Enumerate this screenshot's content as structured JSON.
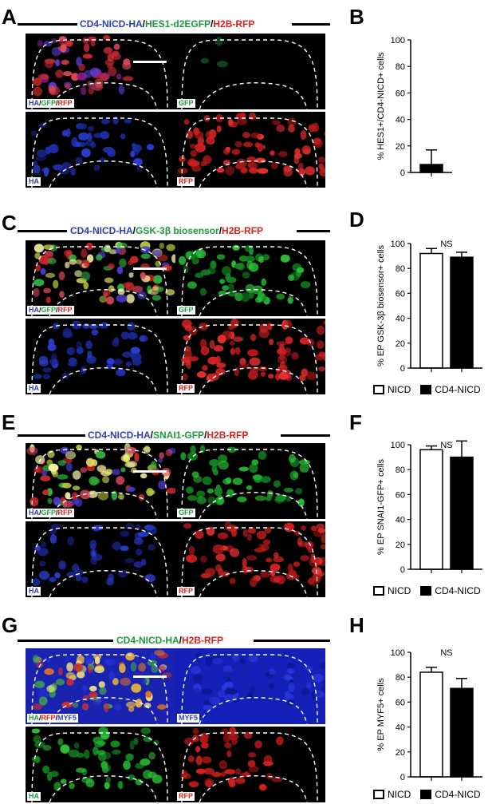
{
  "figure": {
    "panels": [
      {
        "letter": "A",
        "title": [
          {
            "text": "CD4-NICD-HA",
            "color": "blue"
          },
          {
            "text": "/",
            "color": "black"
          },
          {
            "text": "HES1-d2EGFP",
            "color": "green"
          },
          {
            "text": "/",
            "color": "black"
          },
          {
            "text": "H2B-RFP",
            "color": "red"
          }
        ],
        "images": [
          {
            "channels": [
              {
                "text": "HA",
                "color": "blue"
              },
              {
                "text": "/",
                "color": "black"
              },
              {
                "text": "GFP",
                "color": "green"
              },
              {
                "text": "/",
                "color": "black"
              },
              {
                "text": "RFP",
                "color": "red"
              }
            ],
            "fill": "merge_rb"
          },
          {
            "channels": [
              {
                "text": "GFP",
                "color": "green"
              }
            ],
            "fill": "gfp_weak"
          },
          {
            "channels": [
              {
                "text": "HA",
                "color": "blue"
              }
            ],
            "fill": "blue"
          },
          {
            "channels": [
              {
                "text": "RFP",
                "color": "red"
              }
            ],
            "fill": "red"
          }
        ]
      },
      {
        "letter": "C",
        "title": [
          {
            "text": "CD4-NICD-HA",
            "color": "blue"
          },
          {
            "text": "/",
            "color": "black"
          },
          {
            "text": "GSK-3β biosensor",
            "color": "green"
          },
          {
            "text": "/",
            "color": "black"
          },
          {
            "text": "H2B-RFP",
            "color": "red"
          }
        ],
        "images": [
          {
            "channels": [
              {
                "text": "HA",
                "color": "blue"
              },
              {
                "text": "/",
                "color": "black"
              },
              {
                "text": "GFP",
                "color": "green"
              },
              {
                "text": "/",
                "color": "black"
              },
              {
                "text": "RFP",
                "color": "red"
              }
            ],
            "fill": "merge_rgb"
          },
          {
            "channels": [
              {
                "text": "GFP",
                "color": "green"
              }
            ],
            "fill": "green"
          },
          {
            "channels": [
              {
                "text": "HA",
                "color": "blue"
              }
            ],
            "fill": "blue"
          },
          {
            "channels": [
              {
                "text": "RFP",
                "color": "red"
              }
            ],
            "fill": "red"
          }
        ]
      },
      {
        "letter": "E",
        "title": [
          {
            "text": "CD4-NICD-HA",
            "color": "blue"
          },
          {
            "text": "/",
            "color": "black"
          },
          {
            "text": "SNAI1-GFP",
            "color": "green"
          },
          {
            "text": "/",
            "color": "black"
          },
          {
            "text": "H2B-RFP",
            "color": "red"
          }
        ],
        "images": [
          {
            "channels": [
              {
                "text": "HA",
                "color": "blue"
              },
              {
                "text": "/",
                "color": "black"
              },
              {
                "text": "GFP",
                "color": "green"
              },
              {
                "text": "/",
                "color": "black"
              },
              {
                "text": "RFP",
                "color": "red"
              }
            ],
            "fill": "merge_rgb"
          },
          {
            "channels": [
              {
                "text": "GFP",
                "color": "green"
              }
            ],
            "fill": "green"
          },
          {
            "channels": [
              {
                "text": "HA",
                "color": "blue"
              }
            ],
            "fill": "blue"
          },
          {
            "channels": [
              {
                "text": "RFP",
                "color": "red"
              }
            ],
            "fill": "red"
          }
        ]
      },
      {
        "letter": "G",
        "title": [
          {
            "text": "CD4-NICD-HA",
            "color": "green"
          },
          {
            "text": "/",
            "color": "black"
          },
          {
            "text": "H2B-RFP",
            "color": "red"
          }
        ],
        "images": [
          {
            "channels": [
              {
                "text": "HA",
                "color": "green"
              },
              {
                "text": "/",
                "color": "black"
              },
              {
                "text": "RFP",
                "color": "red"
              },
              {
                "text": "/",
                "color": "black"
              },
              {
                "text": "MYF5",
                "color": "blue"
              }
            ],
            "fill": "merge_myf5"
          },
          {
            "channels": [
              {
                "text": "MYF5",
                "color": "blue"
              }
            ],
            "fill": "blue_full"
          },
          {
            "channels": [
              {
                "text": "HA",
                "color": "green"
              }
            ],
            "fill": "green"
          },
          {
            "channels": [
              {
                "text": "RFP",
                "color": "red"
              }
            ],
            "fill": "red_sparse"
          }
        ]
      }
    ],
    "colors": {
      "blue": "#2d3fb0",
      "green": "#1d9a3c",
      "red": "#d8231c",
      "black": "#000000"
    },
    "legend": {
      "open": "NICD",
      "filled": "CD4-NICD"
    }
  },
  "chart_data": [
    {
      "panel": "B",
      "type": "bar",
      "ylabel": "% HES1+/CD4-NICD+ cells",
      "ylim": [
        0,
        100
      ],
      "yticks": [
        "0",
        "20",
        "40",
        "60",
        "80",
        "100"
      ],
      "categories": [
        "CD4-NICD"
      ],
      "values": [
        6
      ],
      "error": [
        11
      ],
      "fills": [
        "filled"
      ],
      "annotation": ""
    },
    {
      "panel": "D",
      "type": "bar",
      "ylabel": "% EP GSK-3β biosensor+ cells",
      "ylim": [
        0,
        100
      ],
      "yticks": [
        "0",
        "20",
        "40",
        "60",
        "80",
        "100"
      ],
      "categories": [
        "NICD",
        "CD4-NICD"
      ],
      "values": [
        92,
        89
      ],
      "error": [
        4,
        4
      ],
      "fills": [
        "open",
        "filled"
      ],
      "annotation": "NS"
    },
    {
      "panel": "F",
      "type": "bar",
      "ylabel": "% EP SNAI1-GFP+ cells",
      "ylim": [
        0,
        100
      ],
      "yticks": [
        "0",
        "20",
        "40",
        "60",
        "80",
        "100"
      ],
      "categories": [
        "NICD",
        "CD4-NICD"
      ],
      "values": [
        96,
        90
      ],
      "error": [
        3,
        13
      ],
      "fills": [
        "open",
        "filled"
      ],
      "annotation": "NS"
    },
    {
      "panel": "H",
      "type": "bar",
      "ylabel": "% EP MYF5+ cells",
      "ylim": [
        0,
        100
      ],
      "yticks": [
        "0",
        "20",
        "40",
        "60",
        "80",
        "100"
      ],
      "categories": [
        "NICD",
        "CD4-NICD"
      ],
      "values": [
        84,
        71
      ],
      "error": [
        4,
        8
      ],
      "fills": [
        "open",
        "filled"
      ],
      "annotation": "NS"
    }
  ]
}
